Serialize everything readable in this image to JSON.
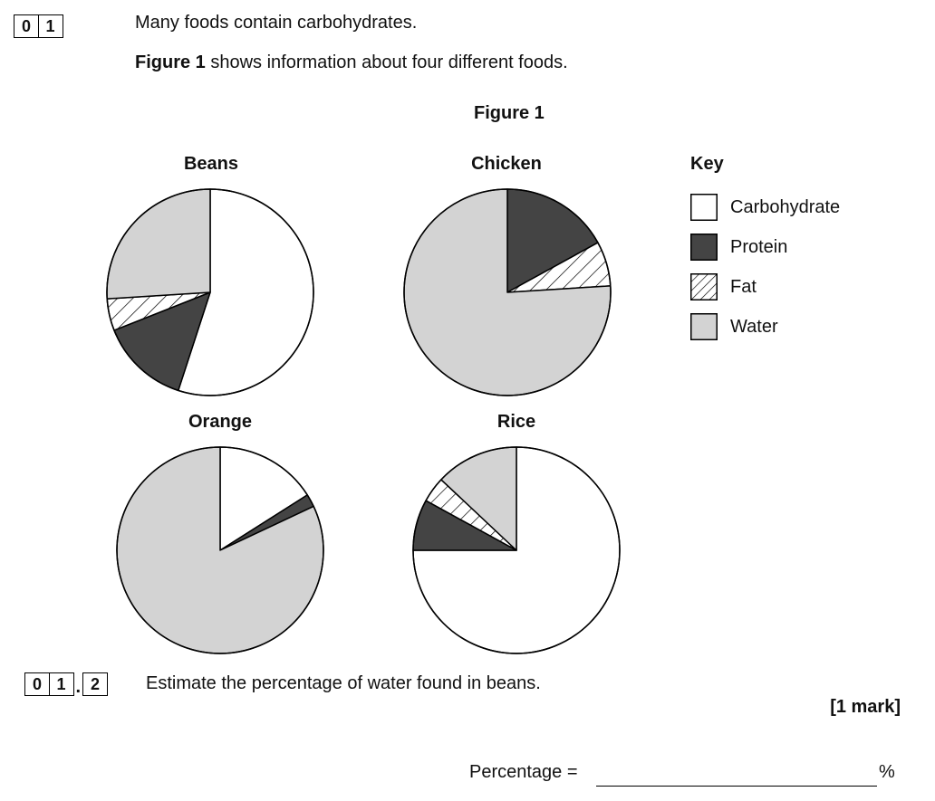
{
  "question": {
    "number_digits": [
      "0",
      "1"
    ],
    "intro": "Many foods contain carbohydrates.",
    "figure_ref_bold": "Figure 1",
    "figure_ref_rest": " shows information about four different foods."
  },
  "figure": {
    "title": "Figure 1"
  },
  "key": {
    "title": "Key",
    "items": [
      {
        "label": "Carbohydrate",
        "fill": "#ffffff"
      },
      {
        "label": "Protein",
        "fill": "#444444"
      },
      {
        "label": "Fat",
        "fill": "hatch"
      },
      {
        "label": "Water",
        "fill": "#d3d3d3"
      }
    ]
  },
  "chart_data": {
    "type": "pie",
    "title": "Figure 1",
    "categories": [
      "Carbohydrate",
      "Protein",
      "Fat",
      "Water"
    ],
    "colors": {
      "Carbohydrate": "#ffffff",
      "Protein": "#444444",
      "Fat": "hatch",
      "Water": "#d3d3d3"
    },
    "pies": [
      {
        "name": "Beans",
        "values": [
          55,
          14,
          5,
          26
        ]
      },
      {
        "name": "Chicken",
        "values": [
          0,
          17,
          7,
          76
        ]
      },
      {
        "name": "Orange",
        "values": [
          16,
          2,
          0,
          82
        ]
      },
      {
        "name": "Rice",
        "values": [
          75,
          8,
          4,
          13
        ]
      }
    ]
  },
  "subquestion": {
    "digits": [
      "0",
      "1"
    ],
    "sub_digit": "2",
    "text": "Estimate the percentage of water found in beans.",
    "marks": "[1 mark]",
    "answer_label": "Percentage =",
    "unit": "%"
  }
}
